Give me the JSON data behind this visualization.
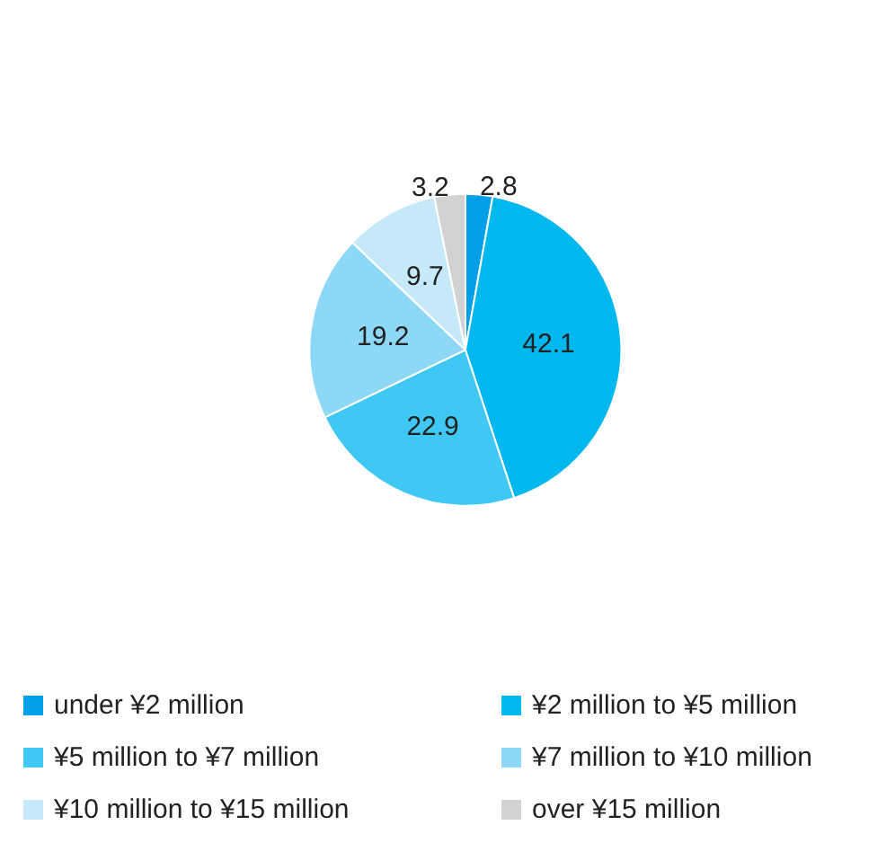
{
  "chart_data": {
    "type": "pie",
    "categories": [
      "under ¥2 million",
      "¥2 million to ¥5 million",
      "¥5 million to ¥7 million",
      "¥7 million to ¥10 million",
      "¥10 million to ¥15 million",
      "over ¥15 million"
    ],
    "values": [
      2.8,
      42.1,
      22.9,
      19.2,
      9.7,
      3.2
    ],
    "colors": [
      "#00a0e9",
      "#00b8ee",
      "#40c8f4",
      "#8ed8f7",
      "#c6e9fa",
      "#d2d2d2"
    ],
    "data_labels": true,
    "legend": "bottom"
  }
}
